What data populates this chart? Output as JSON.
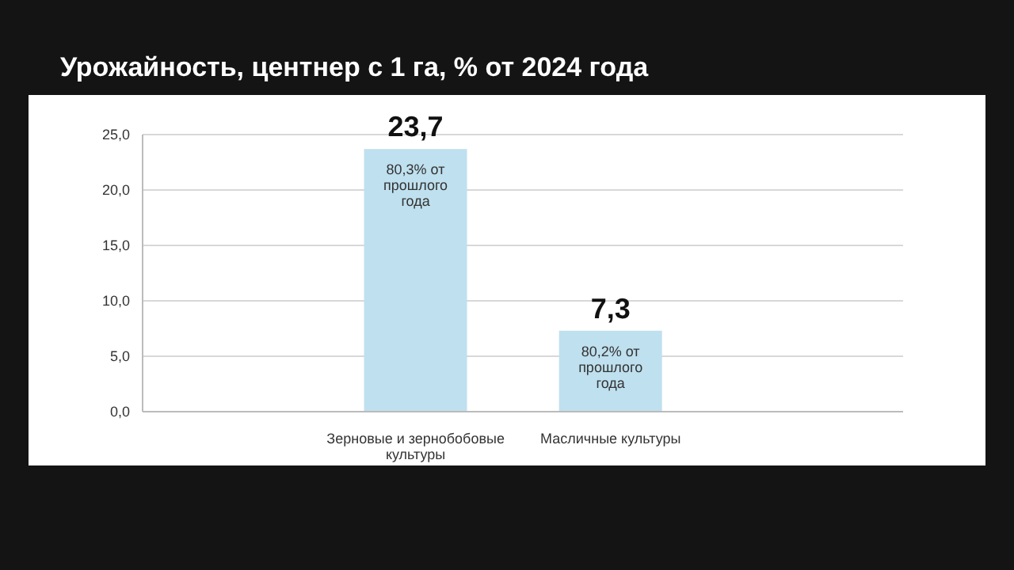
{
  "chart_data": {
    "type": "bar",
    "title": "Урожайность, центнер с 1 га, % от 2024 года",
    "categories": [
      "Зерновые и зернобобовые культуры",
      "Масличные культуры"
    ],
    "values": [
      23.7,
      7.3
    ],
    "color": "#bfe0ee",
    "value_labels": [
      "23,7",
      "7,3"
    ],
    "annotations": [
      "80,3% от прошлого года",
      "80,2% от прошлого года"
    ],
    "ylim": [
      0,
      25
    ],
    "yticks": [
      {
        "value": 0,
        "label": "0,0"
      },
      {
        "value": 5,
        "label": "5,0"
      },
      {
        "value": 10,
        "label": "10,0"
      },
      {
        "value": 15,
        "label": "15,0"
      },
      {
        "value": 20,
        "label": "20,0"
      },
      {
        "value": 25,
        "label": "25,0"
      }
    ],
    "grid": "y"
  }
}
